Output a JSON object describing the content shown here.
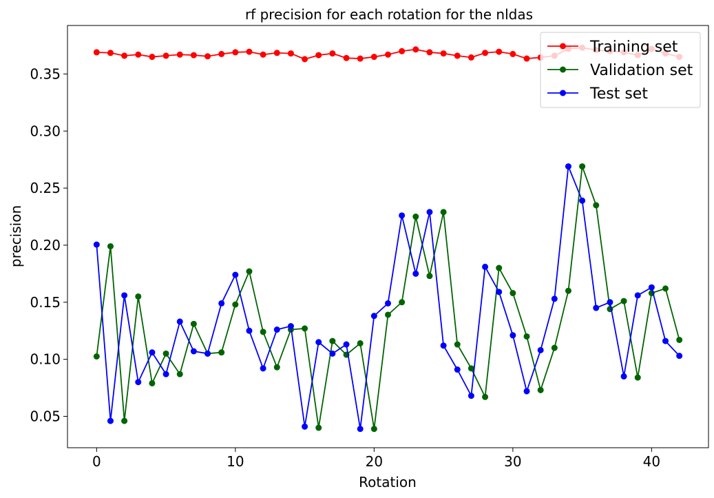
{
  "chart_data": {
    "type": "line",
    "title": "rf precision for each rotation for the nldas",
    "xlabel": "Rotation",
    "ylabel": "precision",
    "xlim": [
      -2.1,
      44.1
    ],
    "ylim": [
      0.0225,
      0.3925
    ],
    "xticks": [
      0,
      10,
      20,
      30,
      40
    ],
    "yticks": [
      0.05,
      0.1,
      0.15,
      0.2,
      0.25,
      0.3,
      0.35
    ],
    "ytick_labels": [
      "0.05",
      "0.10",
      "0.15",
      "0.20",
      "0.25",
      "0.30",
      "0.35"
    ],
    "grid": false,
    "legend_position": "top-right",
    "x": [
      0,
      1,
      2,
      3,
      4,
      5,
      6,
      7,
      8,
      9,
      10,
      11,
      12,
      13,
      14,
      15,
      16,
      17,
      18,
      19,
      20,
      21,
      22,
      23,
      24,
      25,
      26,
      27,
      28,
      29,
      30,
      31,
      32,
      33,
      34,
      35,
      36,
      37,
      38,
      39,
      40,
      41,
      42
    ],
    "series": [
      {
        "name": "Training set",
        "color": "#ff0000",
        "values": [
          0.369,
          0.3685,
          0.366,
          0.367,
          0.365,
          0.366,
          0.367,
          0.3665,
          0.3655,
          0.3675,
          0.369,
          0.3695,
          0.367,
          0.3685,
          0.368,
          0.363,
          0.3665,
          0.368,
          0.364,
          0.3635,
          0.365,
          0.367,
          0.37,
          0.3715,
          0.369,
          0.368,
          0.366,
          0.3645,
          0.3685,
          0.3695,
          0.3675,
          0.3635,
          0.3645,
          0.366,
          0.372,
          0.373,
          0.371,
          0.37,
          0.369,
          0.3665,
          0.372,
          0.368,
          0.365
        ]
      },
      {
        "name": "Validation set",
        "color": "#006400",
        "values": [
          0.1025,
          0.199,
          0.046,
          0.155,
          0.079,
          0.105,
          0.087,
          0.131,
          0.105,
          0.106,
          0.148,
          0.177,
          0.124,
          0.093,
          0.126,
          0.127,
          0.04,
          0.116,
          0.104,
          0.114,
          0.039,
          0.139,
          0.15,
          0.225,
          0.173,
          0.229,
          0.113,
          0.092,
          0.067,
          0.18,
          0.158,
          0.12,
          0.073,
          0.11,
          0.16,
          0.269,
          0.235,
          0.144,
          0.151,
          0.084,
          0.158,
          0.162,
          0.117
        ]
      },
      {
        "name": "Test set",
        "color": "#0000ff",
        "values": [
          0.2005,
          0.046,
          0.156,
          0.08,
          0.106,
          0.087,
          0.133,
          0.107,
          0.105,
          0.149,
          0.174,
          0.125,
          0.092,
          0.126,
          0.129,
          0.041,
          0.115,
          0.105,
          0.113,
          0.039,
          0.138,
          0.149,
          0.226,
          0.175,
          0.229,
          0.112,
          0.091,
          0.068,
          0.181,
          0.159,
          0.121,
          0.072,
          0.108,
          0.153,
          0.269,
          0.239,
          0.145,
          0.15,
          0.085,
          0.156,
          0.163,
          0.116,
          0.103
        ]
      }
    ]
  }
}
